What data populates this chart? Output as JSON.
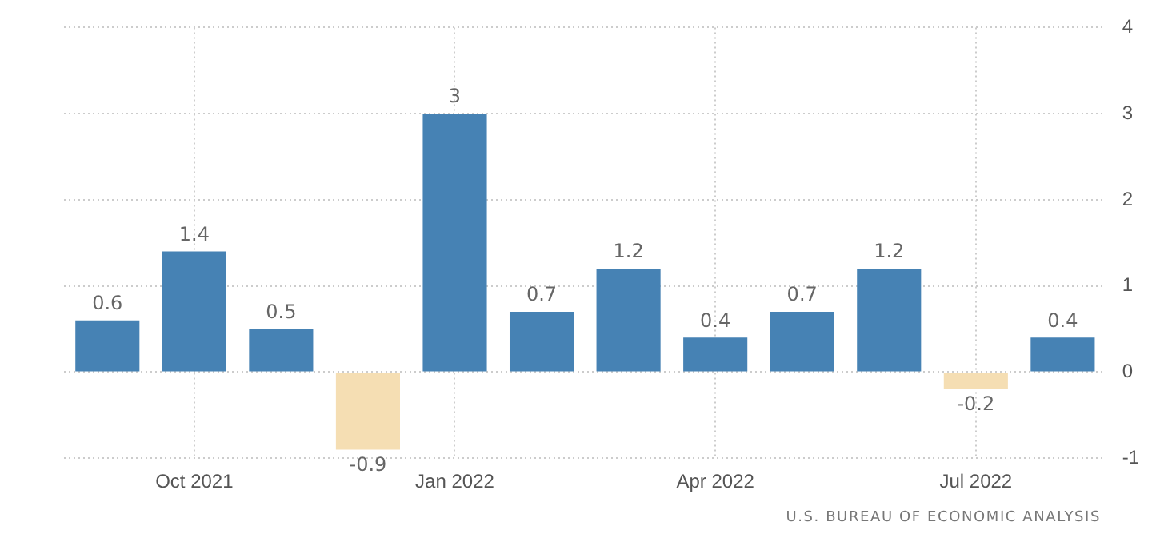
{
  "chart_data": {
    "type": "bar",
    "categories": [
      null,
      "Oct 2021",
      null,
      null,
      "Jan 2022",
      null,
      null,
      "Apr 2022",
      null,
      null,
      "Jul 2022",
      null
    ],
    "values": [
      0.6,
      1.4,
      0.5,
      -0.9,
      3,
      0.7,
      1.2,
      0.4,
      0.7,
      1.2,
      -0.2,
      0.4
    ],
    "colors": [
      "#4682b4",
      "#4682b4",
      "#4682b4",
      "#f5deb3",
      "#4682b4",
      "#4682b4",
      "#4682b4",
      "#4682b4",
      "#4682b4",
      "#4682b4",
      "#f5deb3",
      "#4682b4"
    ],
    "ylim": [
      -1,
      4
    ],
    "yticks": [
      -1,
      0,
      1,
      2,
      3,
      4
    ],
    "grid": true,
    "legend": false,
    "data_labels": true,
    "annotations": [
      "U.S. BUREAU OF ECONOMIC ANALYSIS"
    ]
  }
}
